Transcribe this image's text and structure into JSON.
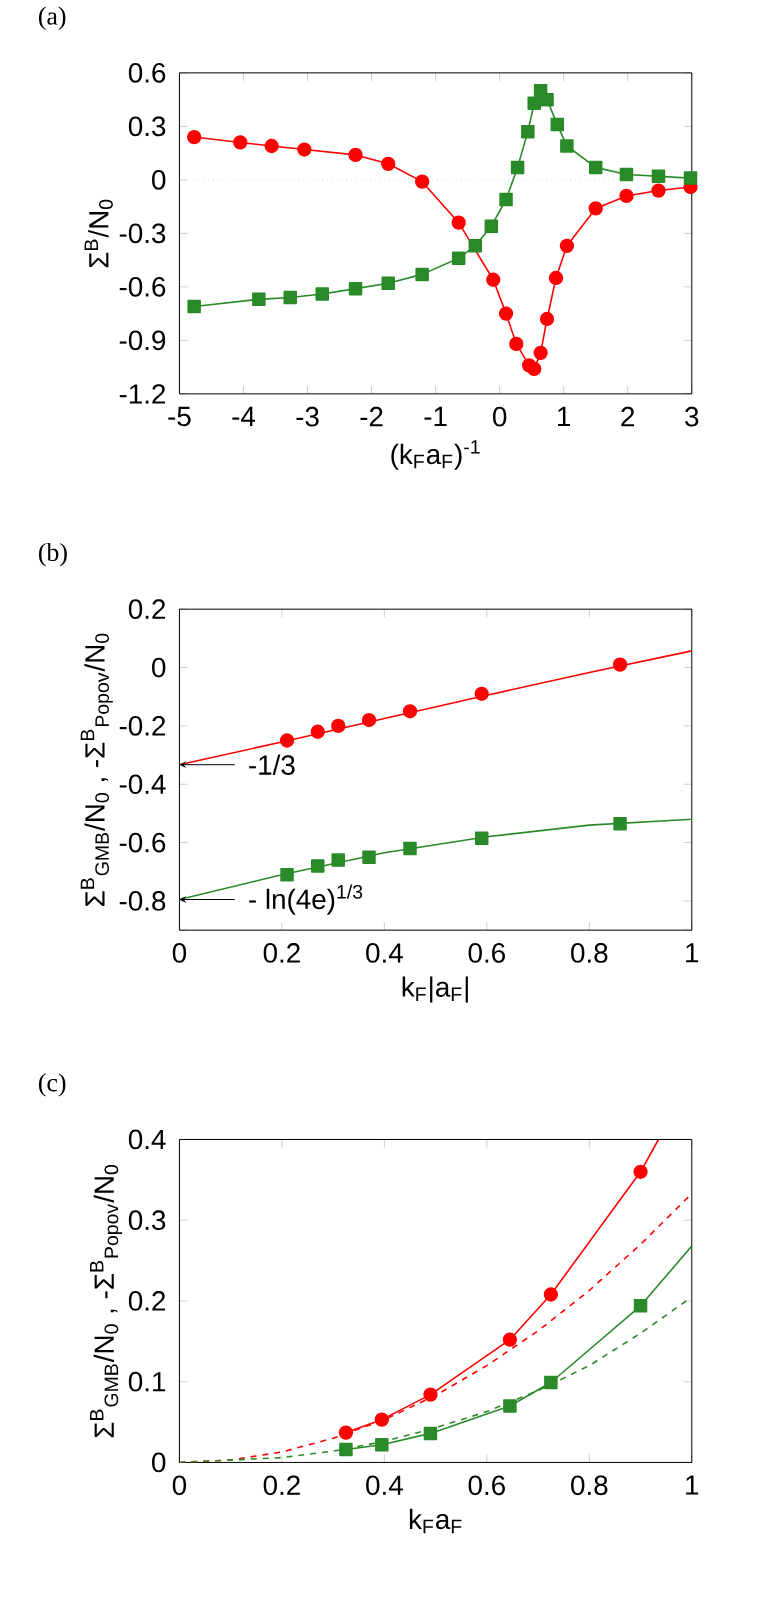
{
  "chart_data": [
    {
      "type": "line",
      "title": "(a)",
      "xlabel": "(k$_{F}$a$_{F}$)$^{-1}$",
      "ylabel": "Σ$^{B}$/N$_{0}$",
      "xlim": [
        -5,
        3
      ],
      "ylim": [
        -1.2,
        0.6
      ],
      "xticks": [
        -5,
        -4,
        -3,
        -2,
        -1,
        0,
        1,
        2,
        3
      ],
      "yticks": [
        -1.2,
        -0.9,
        -0.6,
        -0.3,
        0,
        0.3,
        0.6
      ],
      "ref_lines": [
        {
          "axis": "y",
          "value": 0,
          "color": "#b0b0b0",
          "line_style": "dotted"
        }
      ],
      "series": [
        {
          "color": "#ff0000",
          "marker": "circle",
          "line_style": "solid",
          "x": [
            -4.77,
            -4.05,
            -3.56,
            -3.05,
            -2.25,
            -1.74,
            -1.21,
            -0.64,
            -0.1,
            0.1,
            0.26,
            0.46,
            0.54,
            0.64,
            0.74,
            0.88,
            1.05,
            1.5,
            1.98,
            2.48,
            2.98
          ],
          "values": [
            0.24,
            0.21,
            0.19,
            0.17,
            0.14,
            0.09,
            -0.01,
            -0.24,
            -0.56,
            -0.75,
            -0.92,
            -1.04,
            -1.06,
            -0.97,
            -0.78,
            -0.55,
            -0.37,
            -0.16,
            -0.09,
            -0.06,
            -0.04
          ]
        },
        {
          "color": "#2a8a2a",
          "marker": "square",
          "line_style": "solid",
          "x": [
            -4.77,
            -3.76,
            -3.27,
            -2.77,
            -2.25,
            -1.74,
            -1.21,
            -0.64,
            -0.38,
            -0.13,
            0.1,
            0.28,
            0.44,
            0.54,
            0.64,
            0.74,
            0.9,
            1.05,
            1.5,
            1.98,
            2.48,
            2.98
          ],
          "values": [
            -0.71,
            -0.67,
            -0.66,
            -0.64,
            -0.61,
            -0.58,
            -0.53,
            -0.44,
            -0.37,
            -0.26,
            -0.11,
            0.07,
            0.27,
            0.43,
            0.5,
            0.45,
            0.31,
            0.19,
            0.07,
            0.03,
            0.02,
            0.01
          ]
        }
      ]
    },
    {
      "type": "line",
      "title": "(b)",
      "xlabel": "k$_{F}$|a$_{F}$|",
      "ylabel": "Σ$^{B}$$_{GMB}$/N$_{0}$  ,  -Σ$^{B}$$_{Popov}$/N$_{0}$",
      "xlim": [
        0,
        1
      ],
      "ylim": [
        -0.9,
        0.2
      ],
      "xticks": [
        0,
        0.2,
        0.4,
        0.6,
        0.8,
        1
      ],
      "yticks": [
        {
          "value": -0.9,
          "label": null
        },
        -0.8,
        -0.6,
        -0.4,
        -0.2,
        0,
        0.2
      ],
      "annotations": [
        {
          "text": "-1/3",
          "x": 0,
          "y": -0.333
        },
        {
          "text": "- ln(4e)$^{1/3}$",
          "x": 0,
          "y": -0.795
        }
      ],
      "series": [
        {
          "type": "scatter",
          "color": "#ff0000",
          "marker": "circle",
          "x": [
            0.21,
            0.27,
            0.31,
            0.37,
            0.45,
            0.59,
            0.86
          ],
          "values": [
            -0.25,
            -0.22,
            -0.2,
            -0.18,
            -0.15,
            -0.09,
            0.01
          ]
        },
        {
          "type": "scatter",
          "color": "#2a8a2a",
          "marker": "square",
          "x": [
            0.21,
            0.27,
            0.31,
            0.37,
            0.45,
            0.59,
            0.86
          ],
          "values": [
            -0.71,
            -0.68,
            -0.66,
            -0.65,
            -0.62,
            -0.585,
            -0.535
          ]
        },
        {
          "type": "line",
          "color": "#ff0000",
          "marker": "none",
          "line_style": "solid",
          "x": [
            0,
            0.2,
            0.4,
            0.6,
            0.8,
            1
          ],
          "values": [
            -0.333,
            -0.255,
            -0.175,
            -0.095,
            -0.017,
            0.057
          ]
        },
        {
          "type": "line",
          "color": "#2a8a2a",
          "marker": "none",
          "line_style": "solid",
          "x": [
            0,
            0.2,
            0.4,
            0.6,
            0.8,
            1
          ],
          "values": [
            -0.795,
            -0.71,
            -0.635,
            -0.58,
            -0.54,
            -0.52
          ]
        }
      ]
    },
    {
      "type": "line",
      "title": "(c)",
      "xlabel": "k$_{F}$a$_{F}$",
      "ylabel": "Σ$^{B}$$_{GMB}$/N$_{0}$  ,  -Σ$^{B}$$_{Popov}$/N$_{0}$",
      "xlim": [
        0,
        1
      ],
      "ylim": [
        0,
        0.4
      ],
      "xticks": [
        0,
        0.2,
        0.4,
        0.6,
        0.8,
        1
      ],
      "yticks": [
        0,
        0.1,
        0.2,
        0.3,
        0.4
      ],
      "series": [
        {
          "type": "scatter",
          "color": "#ff0000",
          "marker": "circle",
          "x": [
            0.325,
            0.395,
            0.49,
            0.645,
            0.725,
            0.9
          ],
          "values": [
            0.037,
            0.053,
            0.084,
            0.152,
            0.208,
            0.36
          ]
        },
        {
          "type": "scatter",
          "color": "#2a8a2a",
          "marker": "square",
          "x": [
            0.325,
            0.395,
            0.49,
            0.645,
            0.725,
            0.9
          ],
          "values": [
            0.016,
            0.022,
            0.036,
            0.07,
            0.099,
            0.194
          ]
        },
        {
          "type": "line",
          "color": "#ff0000",
          "marker": "none",
          "line_style": "solid",
          "x": [
            0.325,
            0.395,
            0.49,
            0.645,
            0.725,
            0.9,
            0.935
          ],
          "values": [
            0.037,
            0.053,
            0.084,
            0.152,
            0.208,
            0.36,
            0.4
          ]
        },
        {
          "type": "line",
          "color": "#2a8a2a",
          "marker": "none",
          "line_style": "solid",
          "x": [
            0.325,
            0.395,
            0.49,
            0.645,
            0.725,
            0.9,
            1
          ],
          "values": [
            0.016,
            0.022,
            0.036,
            0.07,
            0.099,
            0.194,
            0.268
          ]
        },
        {
          "type": "line",
          "color": "#ff0000",
          "marker": "none",
          "line_style": "dashed",
          "x": [
            0,
            0.1,
            0.2,
            0.3,
            0.4,
            0.5,
            0.6,
            0.7,
            0.8,
            0.9,
            1
          ],
          "values": [
            0,
            0.003,
            0.013,
            0.03,
            0.053,
            0.083,
            0.12,
            0.163,
            0.213,
            0.27,
            0.333
          ]
        },
        {
          "type": "line",
          "color": "#2a8a2a",
          "marker": "none",
          "line_style": "dashed",
          "x": [
            0,
            0.2,
            0.3,
            0.4,
            0.5,
            0.6,
            0.7,
            0.8,
            0.9,
            1
          ],
          "values": [
            0,
            0.006,
            0.014,
            0.026,
            0.043,
            0.063,
            0.089,
            0.12,
            0.16,
            0.205
          ]
        }
      ]
    }
  ]
}
